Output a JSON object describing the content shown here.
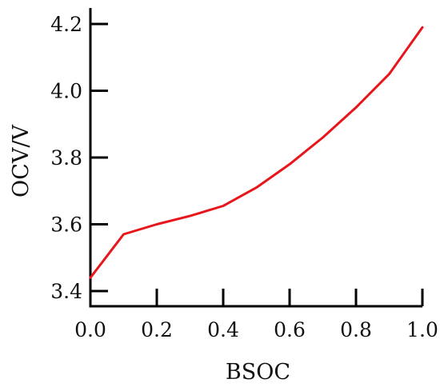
{
  "chart_data": {
    "type": "line",
    "title": "",
    "xlabel": "BSOC",
    "ylabel": "OCV/V",
    "xlim": [
      0.0,
      1.0
    ],
    "ylim": [
      3.4,
      4.25
    ],
    "grid": false,
    "legend": "none",
    "x_ticks": [
      "0.0",
      "0.2",
      "0.4",
      "0.6",
      "0.8",
      "1.0"
    ],
    "x_tick_values": [
      0.0,
      0.2,
      0.4,
      0.6,
      0.8,
      1.0
    ],
    "y_ticks": [
      "3.4",
      "3.6",
      "3.8",
      "4.0",
      "4.2"
    ],
    "y_tick_values": [
      3.4,
      3.6,
      3.8,
      4.0,
      4.2
    ],
    "series": [
      {
        "color": "#e8151b",
        "x": [
          0.0,
          0.1,
          0.2,
          0.3,
          0.4,
          0.5,
          0.6,
          0.7,
          0.8,
          0.9,
          1.0
        ],
        "y": [
          3.44,
          3.57,
          3.6,
          3.625,
          3.655,
          3.71,
          3.78,
          3.86,
          3.95,
          4.05,
          4.19
        ]
      }
    ]
  }
}
